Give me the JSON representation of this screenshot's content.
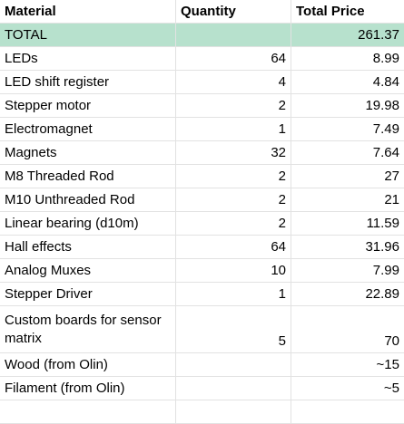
{
  "header": {
    "material": "Material",
    "quantity": "Quantity",
    "total_price": "Total Price"
  },
  "total_row": {
    "material": "TOTAL",
    "quantity": "",
    "total_price": "261.37",
    "highlight_color": "#b7e1cd"
  },
  "rows": [
    {
      "material": "LEDs",
      "quantity": "64",
      "total_price": "8.99"
    },
    {
      "material": "LED shift register",
      "quantity": "4",
      "total_price": "4.84"
    },
    {
      "material": "Stepper motor",
      "quantity": "2",
      "total_price": "19.98"
    },
    {
      "material": "Electromagnet",
      "quantity": "1",
      "total_price": "7.49"
    },
    {
      "material": "Magnets",
      "quantity": "32",
      "total_price": "7.64"
    },
    {
      "material": "M8 Threaded Rod",
      "quantity": "2",
      "total_price": "27"
    },
    {
      "material": "M10 Unthreaded Rod",
      "quantity": "2",
      "total_price": "21"
    },
    {
      "material": "Linear bearing (d10m)",
      "quantity": "2",
      "total_price": "11.59"
    },
    {
      "material": "Hall effects",
      "quantity": "64",
      "total_price": "31.96"
    },
    {
      "material": "Analog Muxes",
      "quantity": "10",
      "total_price": "7.99"
    },
    {
      "material": "Stepper Driver",
      "quantity": "1",
      "total_price": "22.89"
    },
    {
      "material": "Custom boards for sensor matrix",
      "quantity": "5",
      "total_price": "70"
    },
    {
      "material": "Wood (from Olin)",
      "quantity": "",
      "total_price": "~15"
    },
    {
      "material": "Filament (from Olin)",
      "quantity": "",
      "total_price": "~5"
    }
  ]
}
